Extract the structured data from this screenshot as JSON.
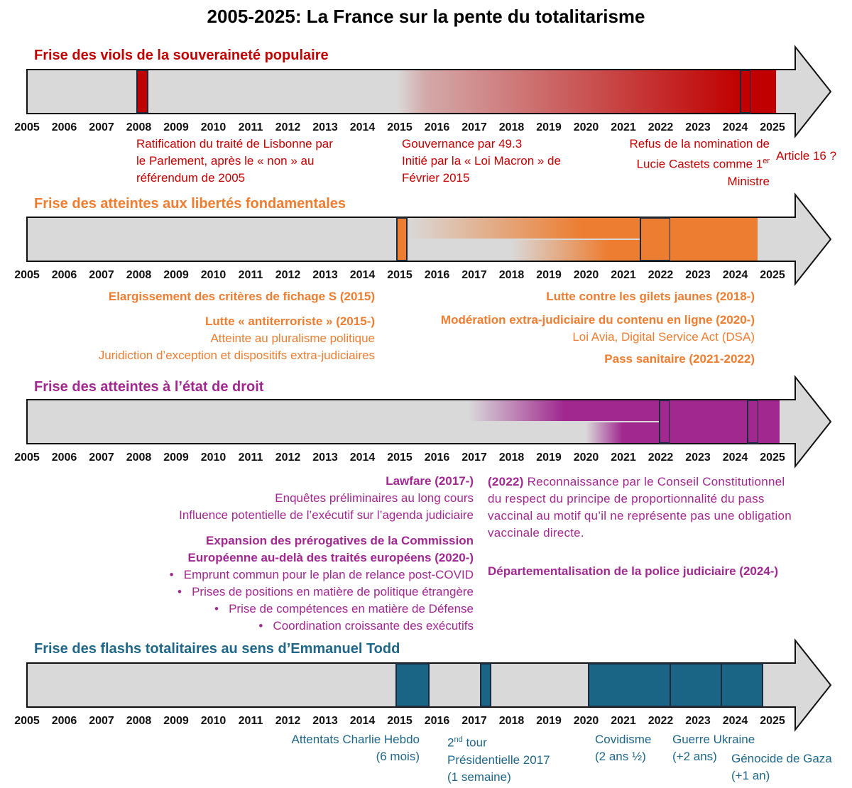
{
  "title": "2005-2025: La France sur la pente du totalitarisme",
  "years": [
    "2005",
    "2006",
    "2007",
    "2008",
    "2009",
    "2010",
    "2011",
    "2012",
    "2013",
    "2014",
    "2015",
    "2016",
    "2017",
    "2018",
    "2019",
    "2020",
    "2021",
    "2022",
    "2023",
    "2024",
    "2025"
  ],
  "colors": {
    "red": "#c00000",
    "orange": "#ed7d31",
    "purple": "#a0288f",
    "blue": "#1a6585",
    "bar": "#d9d9d9"
  },
  "rows": [
    {
      "title": "Frise des viols de la souveraineté populaire",
      "notes": [
        {
          "lines": [
            "Ratification du traité de Lisbonne par",
            "le Parlement, après le « non » au",
            "référendum de 2005"
          ]
        },
        {
          "lines": [
            "Gouvernance par 49.3",
            "Initié par la « Loi Macron » de",
            "Février 2015"
          ]
        },
        {
          "lines": [
            "Refus de la nomination de",
            "Lucie Castets comme 1",
            "er",
            "Ministre"
          ]
        },
        {
          "lines": [
            "Article 16 ?"
          ]
        }
      ]
    },
    {
      "title": "Frise des atteintes aux libertés fondamentales",
      "notes": [
        {
          "lines": [
            "Elargissement des critères de fichage S (2015)"
          ]
        },
        {
          "lines": [
            "Lutte « antiterroriste » (2015-)",
            "Atteinte au pluralisme politique",
            "Juridiction d’exception et dispositifs extra-judiciaires"
          ]
        },
        {
          "lines": [
            "Lutte contre les gilets jaunes (2018-)"
          ]
        },
        {
          "lines": [
            "Modération extra-judiciaire du contenu en ligne (2020-)",
            "Loi Avia, Digital Service Act (DSA)"
          ]
        },
        {
          "lines": [
            "Pass sanitaire (2021-2022)"
          ]
        }
      ]
    },
    {
      "title": "Frise des atteintes à l’état de droit",
      "notes": [
        {
          "lines": [
            "Lawfare (2017-)",
            "Enquêtes préliminaires au long cours",
            "Influence potentielle de l’exécutif sur l’agenda judiciaire"
          ]
        },
        {
          "lines": [
            "Expansion des prérogatives de la Commission",
            "Européenne au-delà des traités européens (2020-)",
            "Emprunt commun pour le plan de relance post-COVID",
            "Prises de positions en matière de politique étrangère",
            "Prise de compétences en matière de Défense",
            "Coordination croissante des exécutifs"
          ]
        },
        {
          "lines": [
            "(2022)",
            " Reconnaissance par le Conseil Constitutionnel",
            "du respect du principe de proportionnalité du pass",
            "vaccinal au motif qu’il ne représente pas une obligation",
            "vaccinale directe."
          ]
        },
        {
          "lines": [
            "Départementalisation de la police judiciaire (2024-)"
          ]
        }
      ]
    },
    {
      "title": "Frise des flashs totalitaires au sens d’Emmanuel Todd",
      "notes": [
        {
          "lines": [
            "Attentats Charlie Hebdo",
            "(6 mois)"
          ]
        },
        {
          "lines": [
            "2",
            "nd",
            " tour",
            "Présidentielle 2017",
            "(1 semaine)"
          ]
        },
        {
          "lines": [
            "Covidisme",
            "(2 ans ½)"
          ]
        },
        {
          "lines": [
            "Guerre Ukraine",
            "(+2 ans)"
          ]
        },
        {
          "lines": [
            "Génocide de Gaza",
            "(+1 an)"
          ]
        }
      ]
    }
  ]
}
